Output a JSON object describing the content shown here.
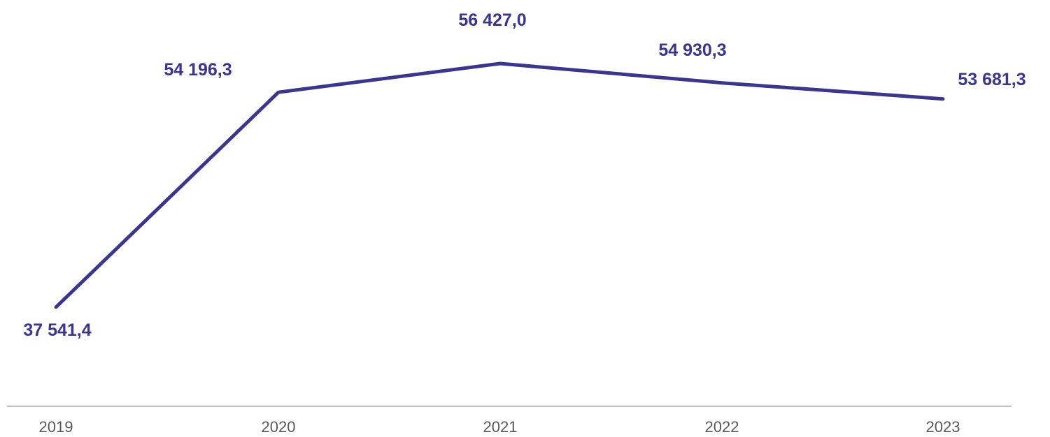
{
  "chart_data": {
    "type": "line",
    "categories": [
      "2019",
      "2020",
      "2021",
      "2022",
      "2023"
    ],
    "series": [
      {
        "values": [
          37541.4,
          54196.3,
          56427.0,
          54930.3,
          53681.3
        ]
      }
    ],
    "data_labels": [
      "37 541,4",
      "54 196,3",
      "56 427,0",
      "54 930,3",
      "53 681,3"
    ],
    "title": "",
    "xlabel": "",
    "ylabel": "",
    "grid": false,
    "legend": "none",
    "colors": {
      "line": "#3a3590",
      "labels": "#3a3590",
      "axis": "#bfbfbf",
      "ticks": "#595959"
    }
  }
}
